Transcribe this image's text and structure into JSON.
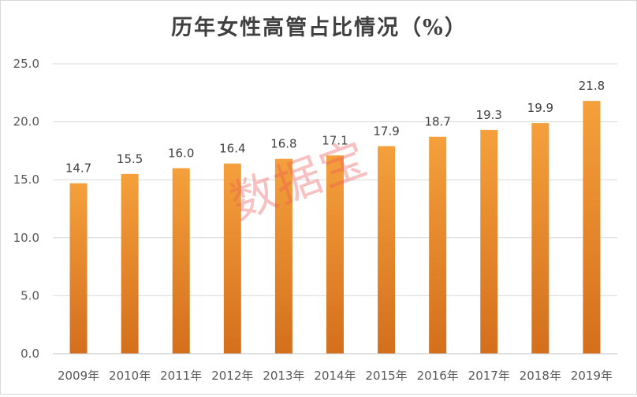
{
  "chart_data": {
    "type": "bar",
    "title": "历年女性高管占比情况（%）",
    "categories": [
      "2009年",
      "2010年",
      "2011年",
      "2012年",
      "2013年",
      "2014年",
      "2015年",
      "2016年",
      "2017年",
      "2018年",
      "2019年"
    ],
    "values": [
      14.7,
      15.5,
      16.0,
      16.4,
      16.8,
      17.1,
      17.9,
      18.7,
      19.3,
      19.9,
      21.8
    ],
    "data_labels": [
      "14.7",
      "15.5",
      "16.0",
      "16.4",
      "16.8",
      "17.1",
      "17.9",
      "18.7",
      "19.3",
      "19.9",
      "21.8"
    ],
    "ylim": [
      0,
      25
    ],
    "yticks": [
      "0.0",
      "5.0",
      "10.0",
      "15.0",
      "20.0",
      "25.0"
    ],
    "ytick_values": [
      0,
      5,
      10,
      15,
      20,
      25
    ],
    "grid": true,
    "bar_color_top": "#f5a03c",
    "bar_color_bottom": "#d46f1c",
    "grid_color": "#d9d9d9"
  },
  "watermark": "数据宝"
}
